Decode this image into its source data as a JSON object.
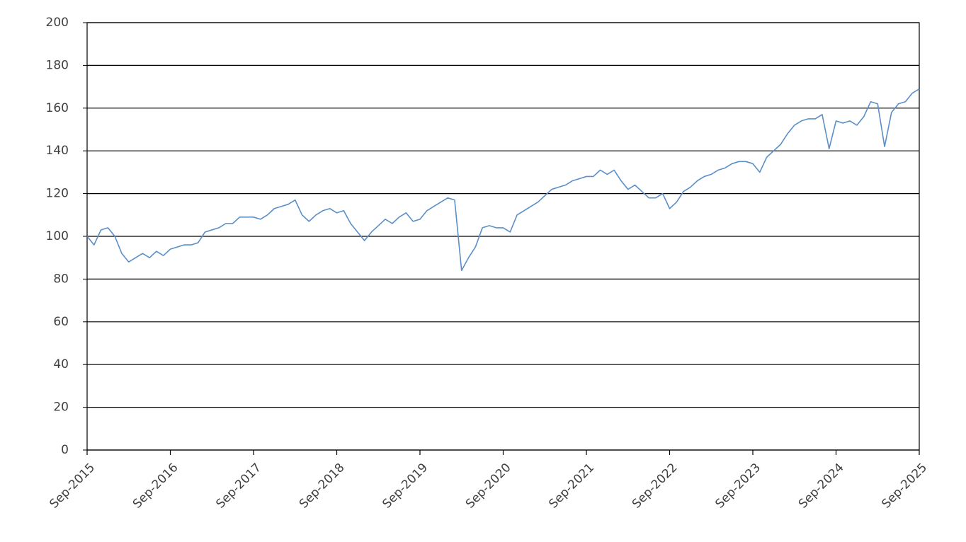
{
  "chart_data": {
    "type": "line",
    "x": [
      "Sep-2015",
      "Oct-2015",
      "Nov-2015",
      "Dec-2015",
      "Jan-2016",
      "Feb-2016",
      "Mar-2016",
      "Apr-2016",
      "May-2016",
      "Jun-2016",
      "Jul-2016",
      "Aug-2016",
      "Sep-2016",
      "Oct-2016",
      "Nov-2016",
      "Dec-2016",
      "Jan-2017",
      "Feb-2017",
      "Mar-2017",
      "Apr-2017",
      "May-2017",
      "Jun-2017",
      "Jul-2017",
      "Aug-2017",
      "Sep-2017",
      "Oct-2017",
      "Nov-2017",
      "Dec-2017",
      "Jan-2018",
      "Feb-2018",
      "Mar-2018",
      "Apr-2018",
      "May-2018",
      "Jun-2018",
      "Jul-2018",
      "Aug-2018",
      "Sep-2018",
      "Oct-2018",
      "Nov-2018",
      "Dec-2018",
      "Jan-2019",
      "Feb-2019",
      "Mar-2019",
      "Apr-2019",
      "May-2019",
      "Jun-2019",
      "Jul-2019",
      "Aug-2019",
      "Sep-2019",
      "Oct-2019",
      "Nov-2019",
      "Dec-2019",
      "Jan-2020",
      "Feb-2020",
      "Mar-2020",
      "Apr-2020",
      "May-2020",
      "Jun-2020",
      "Jul-2020",
      "Aug-2020",
      "Sep-2020",
      "Oct-2020",
      "Nov-2020",
      "Dec-2020",
      "Jan-2021",
      "Feb-2021",
      "Mar-2021",
      "Apr-2021",
      "May-2021",
      "Jun-2021",
      "Jul-2021",
      "Aug-2021",
      "Sep-2021",
      "Oct-2021",
      "Nov-2021",
      "Dec-2021",
      "Jan-2022",
      "Feb-2022",
      "Mar-2022",
      "Apr-2022",
      "May-2022",
      "Jun-2022",
      "Jul-2022",
      "Aug-2022",
      "Sep-2022",
      "Oct-2022",
      "Nov-2022",
      "Dec-2022",
      "Jan-2023",
      "Feb-2023",
      "Mar-2023",
      "Apr-2023",
      "May-2023",
      "Jun-2023",
      "Jul-2023",
      "Aug-2023",
      "Sep-2023",
      "Oct-2023",
      "Nov-2023",
      "Dec-2023",
      "Jan-2024",
      "Feb-2024",
      "Mar-2024",
      "Apr-2024",
      "May-2024",
      "Jun-2024",
      "Jul-2024",
      "Aug-2024",
      "Sep-2024",
      "Oct-2024",
      "Nov-2024",
      "Dec-2024",
      "Jan-2025",
      "Feb-2025",
      "Mar-2025",
      "Apr-2025",
      "May-2025",
      "Jun-2025",
      "Jul-2025",
      "Aug-2025",
      "Sep-2025"
    ],
    "series": [
      {
        "color": "#5b8fc7",
        "values": [
          100,
          96,
          103,
          104,
          100,
          92,
          88,
          90,
          92,
          90,
          93,
          91,
          94,
          95,
          96,
          96,
          97,
          102,
          103,
          104,
          106,
          106,
          109,
          109,
          109,
          108,
          110,
          113,
          114,
          115,
          117,
          110,
          107,
          110,
          112,
          113,
          111,
          112,
          106,
          102,
          98,
          102,
          105,
          108,
          106,
          109,
          111,
          107,
          108,
          112,
          114,
          116,
          118,
          117,
          84,
          90,
          95,
          104,
          105,
          104,
          104,
          102,
          110,
          112,
          114,
          116,
          119,
          122,
          123,
          124,
          126,
          127,
          128,
          128,
          131,
          129,
          131,
          126,
          122,
          124,
          121,
          118,
          118,
          120,
          113,
          116,
          121,
          123,
          126,
          128,
          129,
          131,
          132,
          134,
          135,
          135,
          134,
          130,
          137,
          140,
          143,
          148,
          152,
          154,
          155,
          155,
          157,
          141,
          154,
          153,
          154,
          152,
          156,
          163,
          162,
          142,
          158,
          162,
          163,
          167,
          169
        ]
      }
    ],
    "xticks": [
      "Sep-2015",
      "Sep-2016",
      "Sep-2017",
      "Sep-2018",
      "Sep-2019",
      "Sep-2020",
      "Sep-2021",
      "Sep-2022",
      "Sep-2023",
      "Sep-2024",
      "Sep-2025"
    ],
    "ylim": [
      0,
      200
    ],
    "yticks": [
      0,
      20,
      40,
      60,
      80,
      100,
      120,
      140,
      160,
      180,
      200
    ],
    "grid": true
  }
}
